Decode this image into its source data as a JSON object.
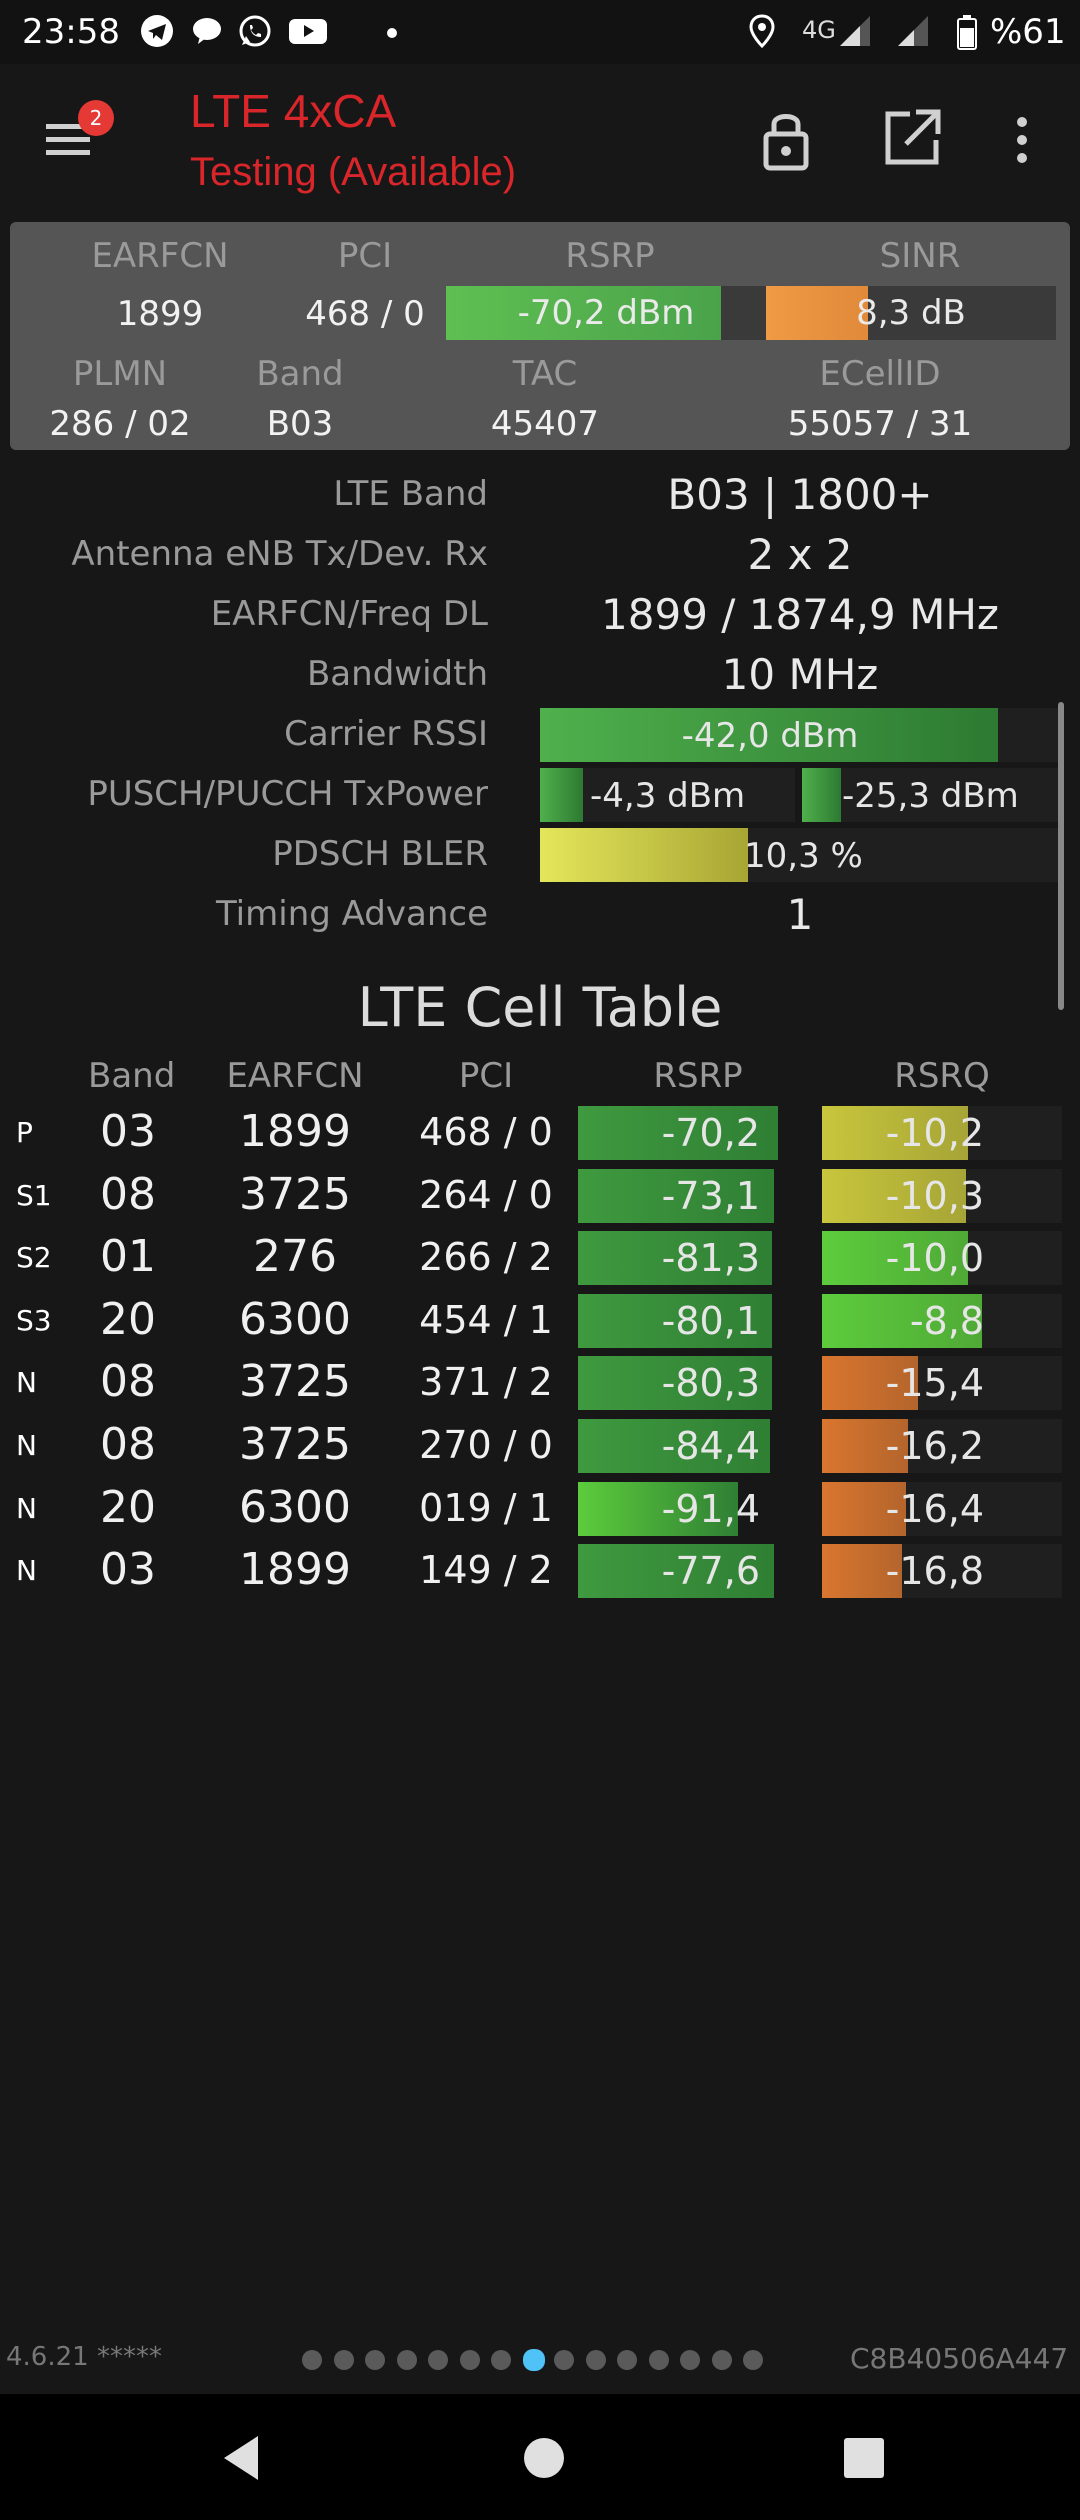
{
  "status_bar": {
    "time": "23:58",
    "network": "4G",
    "battery": "%61",
    "icons": [
      "telegram-icon",
      "chat-bubble-icon",
      "whatsapp-icon",
      "youtube-icon",
      "dot-icon",
      "location-icon",
      "signal-icon",
      "signal-icon",
      "battery-icon"
    ]
  },
  "app_bar": {
    "badge": "2",
    "title": "LTE 4xCA",
    "subtitle": "Testing (Available)",
    "icons": [
      "menu-icon",
      "lock-icon",
      "open-external-icon",
      "more-vert-icon"
    ]
  },
  "summary": {
    "headers": {
      "earfcn": "EARFCN",
      "pci": "PCI",
      "rsrp": "RSRP",
      "sinr": "SINR",
      "plmn": "PLMN",
      "band": "Band",
      "tac": "TAC",
      "ecellid": "ECellID"
    },
    "values": {
      "earfcn": "1899",
      "pci": "468 / 0",
      "rsrp": "-70,2 dBm",
      "sinr": "8,3 dB",
      "plmn": "286 / 02",
      "band": "B03",
      "tac": "45407",
      "ecellid": "55057 / 31"
    },
    "rsrp_level": 0.86,
    "sinr_level": 0.35,
    "colors": {
      "rsrp": "#4aa34a",
      "sinr": "#e08a3a"
    }
  },
  "details": {
    "lte_band": {
      "label": "LTE Band",
      "value": "B03 | 1800+"
    },
    "antenna": {
      "label": "Antenna eNB Tx/Dev. Rx",
      "value": "2 x 2"
    },
    "earfcn_freq": {
      "label": "EARFCN/Freq DL",
      "value": "1899 / 1874,9 MHz"
    },
    "bandwidth": {
      "label": "Bandwidth",
      "value": "10 MHz"
    },
    "carrier_rssi": {
      "label": "Carrier RSSI",
      "value": "-42,0 dBm",
      "level": 0.88
    },
    "tx_power": {
      "label": "PUSCH/PUCCH TxPower",
      "pusch": "-4,3 dBm",
      "pucch": "-25,3 dBm",
      "pusch_level": 0.17,
      "pucch_level": 0.15
    },
    "bler": {
      "label": "PDSCH BLER",
      "value": "10,3 %",
      "level": 0.4
    },
    "timing_advance": {
      "label": "Timing Advance",
      "value": "1"
    }
  },
  "cell_table": {
    "title": "LTE Cell Table",
    "headers": {
      "band": "Band",
      "earfcn": "EARFCN",
      "pci": "PCI",
      "rsrp": "RSRP",
      "rsrq": "RSRQ"
    },
    "rows": [
      {
        "type": "P",
        "band": "03",
        "earfcn": "1899",
        "pci": "468 / 0",
        "rsrp": "-70,2",
        "rsrq": "-10,2",
        "rsrp_level": 1.0,
        "rsrq_level": 0.73,
        "rsrp_color": "#3f9a3f",
        "rsrq_color": "#c8c63c"
      },
      {
        "type": "S1",
        "band": "08",
        "earfcn": "3725",
        "pci": "264 / 0",
        "rsrp": "-73,1",
        "rsrq": "-10,3",
        "rsrp_level": 0.98,
        "rsrq_level": 0.72,
        "rsrp_color": "#3f9a3f",
        "rsrq_color": "#c8c63c"
      },
      {
        "type": "S2",
        "band": "01",
        "earfcn": "276",
        "pci": "266 / 2",
        "rsrp": "-81,3",
        "rsrq": "-10,0",
        "rsrp_level": 0.97,
        "rsrq_level": 0.73,
        "rsrp_color": "#3f9a3f",
        "rsrq_color": "#5ccc3c"
      },
      {
        "type": "S3",
        "band": "20",
        "earfcn": "6300",
        "pci": "454 / 1",
        "rsrp": "-80,1",
        "rsrq": "-8,8",
        "rsrp_level": 0.97,
        "rsrq_level": 0.8,
        "rsrp_color": "#3f9a3f",
        "rsrq_color": "#5ccc3c"
      },
      {
        "type": "N",
        "band": "08",
        "earfcn": "3725",
        "pci": "371 / 2",
        "rsrp": "-80,3",
        "rsrq": "-15,4",
        "rsrp_level": 0.97,
        "rsrq_level": 0.48,
        "rsrp_color": "#3f9a3f",
        "rsrq_color": "#d9762f"
      },
      {
        "type": "N",
        "band": "08",
        "earfcn": "3725",
        "pci": "270 / 0",
        "rsrp": "-84,4",
        "rsrq": "-16,2",
        "rsrp_level": 0.96,
        "rsrq_level": 0.43,
        "rsrp_color": "#3f9a3f",
        "rsrq_color": "#d9762f"
      },
      {
        "type": "N",
        "band": "20",
        "earfcn": "6300",
        "pci": "019 / 1",
        "rsrp": "-91,4",
        "rsrq": "-16,4",
        "rsrp_level": 0.8,
        "rsrq_level": 0.42,
        "rsrp_color": "#5ccc3c",
        "rsrq_color": "#d9762f"
      },
      {
        "type": "N",
        "band": "03",
        "earfcn": "1899",
        "pci": "149 / 2",
        "rsrp": "-77,6",
        "rsrq": "-16,8",
        "rsrp_level": 0.98,
        "rsrq_level": 0.4,
        "rsrp_color": "#3f9a3f",
        "rsrq_color": "#d9762f"
      }
    ]
  },
  "footer": {
    "version": "4.6.21 *****",
    "device_id": "C8B40506A447",
    "page_count": 15,
    "active_page": 8
  },
  "nav_bar": {
    "icons": [
      "back-icon",
      "home-icon",
      "recents-icon"
    ]
  }
}
